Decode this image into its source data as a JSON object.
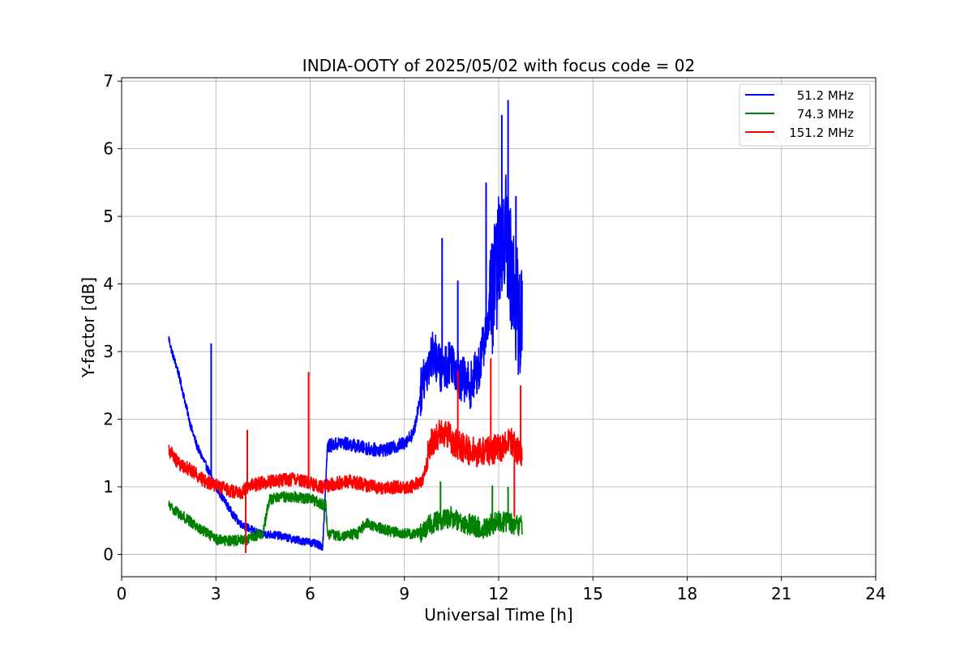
{
  "chart_data": {
    "type": "line",
    "title": "INDIA-OOTY of 2025/05/02 with focus code = 02",
    "xlabel": "Universal Time [h]",
    "ylabel": "Y-factor [dB]",
    "xlim": [
      0,
      24
    ],
    "ylim": [
      -0.33,
      7.05
    ],
    "xticks": [
      0,
      3,
      6,
      9,
      12,
      15,
      18,
      21,
      24
    ],
    "yticks": [
      0,
      1,
      2,
      3,
      4,
      5,
      6,
      7
    ],
    "grid": true,
    "legend_position": "top-right",
    "series": [
      {
        "name": "51.2 MHz",
        "color": "#0000ff",
        "x": [
          1.5,
          1.6,
          1.8,
          2.0,
          2.2,
          2.4,
          2.6,
          2.8,
          3.0,
          3.2,
          3.4,
          3.6,
          3.8,
          4.0,
          4.2,
          4.4,
          4.6,
          5.0,
          5.5,
          6.0,
          6.4,
          6.55,
          7.0,
          7.5,
          8.0,
          8.5,
          9.0,
          9.3,
          9.6,
          9.9,
          10.2,
          10.5,
          10.8,
          11.1,
          11.4,
          11.7,
          11.9,
          12.0,
          12.2,
          12.4,
          12.6,
          12.75
        ],
        "y": [
          3.2,
          3.0,
          2.7,
          2.3,
          1.9,
          1.6,
          1.4,
          1.2,
          1.0,
          0.85,
          0.7,
          0.55,
          0.45,
          0.4,
          0.35,
          0.3,
          0.3,
          0.28,
          0.22,
          0.18,
          0.12,
          1.6,
          1.65,
          1.6,
          1.55,
          1.55,
          1.65,
          1.8,
          2.6,
          3.0,
          2.7,
          2.9,
          2.6,
          2.5,
          2.8,
          3.6,
          4.1,
          4.4,
          4.9,
          4.2,
          3.6,
          3.3
        ],
        "spikes": [
          [
            2.85,
            3.12
          ],
          [
            10.2,
            4.68
          ],
          [
            10.7,
            4.05
          ],
          [
            11.6,
            5.5
          ],
          [
            12.1,
            6.5
          ],
          [
            12.3,
            6.72
          ],
          [
            12.55,
            5.3
          ]
        ]
      },
      {
        "name": "74.3 MHz",
        "color": "#008000",
        "x": [
          1.5,
          2.0,
          2.5,
          3.0,
          3.5,
          4.0,
          4.5,
          4.7,
          5.0,
          5.5,
          6.0,
          6.5,
          6.55,
          7.0,
          7.5,
          7.8,
          8.0,
          8.5,
          9.0,
          9.5,
          10.0,
          10.5,
          11.0,
          11.5,
          12.0,
          12.5,
          12.75
        ],
        "y": [
          0.72,
          0.55,
          0.38,
          0.22,
          0.2,
          0.22,
          0.32,
          0.8,
          0.85,
          0.85,
          0.82,
          0.72,
          0.3,
          0.28,
          0.3,
          0.48,
          0.42,
          0.35,
          0.3,
          0.32,
          0.5,
          0.55,
          0.45,
          0.38,
          0.5,
          0.45,
          0.42
        ],
        "spikes": [
          [
            10.15,
            1.08
          ],
          [
            11.8,
            1.02
          ],
          [
            12.3,
            1.0
          ]
        ]
      },
      {
        "name": "151.2 MHz",
        "color": "#ff0000",
        "x": [
          1.5,
          1.8,
          2.2,
          2.6,
          3.0,
          3.4,
          3.8,
          4.0,
          4.4,
          4.8,
          5.2,
          5.6,
          6.0,
          6.4,
          6.8,
          7.2,
          7.6,
          8.0,
          8.4,
          8.8,
          9.2,
          9.6,
          9.8,
          10.0,
          10.3,
          10.6,
          11.0,
          11.4,
          11.8,
          12.2,
          12.4,
          12.6,
          12.75
        ],
        "y": [
          1.55,
          1.35,
          1.25,
          1.1,
          1.02,
          0.95,
          0.9,
          1.0,
          1.05,
          1.08,
          1.1,
          1.12,
          1.05,
          1.0,
          1.05,
          1.08,
          1.05,
          1.0,
          0.98,
          1.0,
          1.0,
          1.1,
          1.6,
          1.75,
          1.8,
          1.65,
          1.55,
          1.5,
          1.55,
          1.6,
          1.7,
          1.55,
          1.5
        ],
        "spikes": [
          [
            4.0,
            1.84
          ],
          [
            5.95,
            2.7
          ],
          [
            3.95,
            0.02
          ],
          [
            10.7,
            2.72
          ],
          [
            11.75,
            2.9
          ],
          [
            12.5,
            0.55
          ],
          [
            12.7,
            2.5
          ]
        ]
      }
    ]
  }
}
